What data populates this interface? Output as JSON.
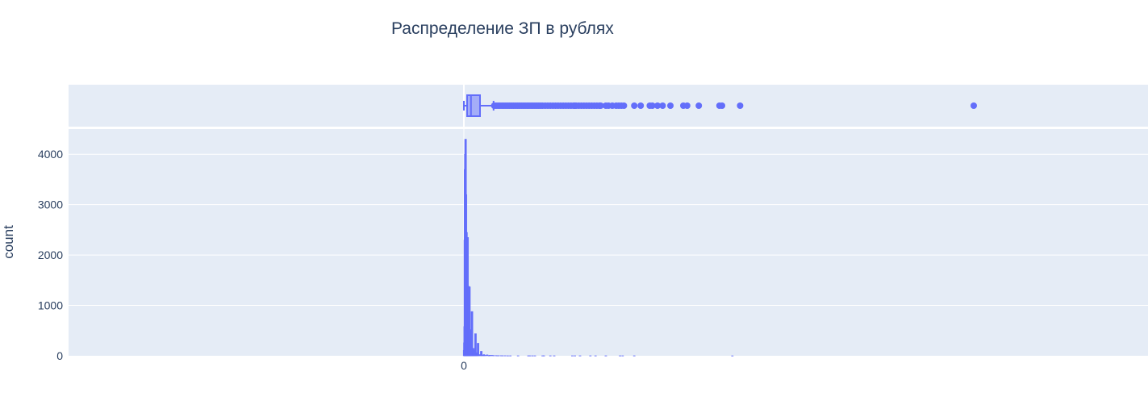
{
  "colors": {
    "plot_bg": "#e5ecf6",
    "grid": "#ffffff",
    "trace": "#636efa",
    "text": "#2a3f5f"
  },
  "chart_data": {
    "type": "histogram",
    "title": "Распределение ЗП в рублях",
    "xlabel": "",
    "ylabel": "count",
    "x_tick_labels": [
      "0"
    ],
    "y_ticks": [
      0,
      1000,
      2000,
      3000,
      4000
    ],
    "ylim": [
      0,
      4500
    ],
    "grid": true,
    "marginal": "box",
    "histogram": {
      "bins": [
        [
          0.02,
          110
        ],
        [
          0.04,
          260
        ],
        [
          0.06,
          580
        ],
        [
          0.075,
          2300
        ],
        [
          0.09,
          3700
        ],
        [
          0.1,
          1500
        ],
        [
          0.11,
          4000
        ],
        [
          0.12,
          2600
        ],
        [
          0.135,
          4300
        ],
        [
          0.15,
          2000
        ],
        [
          0.165,
          3200
        ],
        [
          0.175,
          800
        ],
        [
          0.19,
          920
        ],
        [
          0.205,
          2450
        ],
        [
          0.215,
          620
        ],
        [
          0.225,
          2350
        ],
        [
          0.24,
          420
        ],
        [
          0.255,
          1150
        ],
        [
          0.27,
          300
        ],
        [
          0.29,
          2350
        ],
        [
          0.31,
          80
        ],
        [
          0.33,
          350
        ],
        [
          0.355,
          1380
        ],
        [
          0.375,
          170
        ],
        [
          0.39,
          680
        ],
        [
          0.41,
          360
        ],
        [
          0.43,
          1370
        ],
        [
          0.45,
          100
        ],
        [
          0.475,
          360
        ],
        [
          0.5,
          280
        ],
        [
          0.525,
          90
        ],
        [
          0.55,
          520
        ],
        [
          0.575,
          120
        ],
        [
          0.6,
          50
        ],
        [
          0.63,
          880
        ],
        [
          0.66,
          90
        ],
        [
          0.69,
          50
        ],
        [
          0.72,
          150
        ],
        [
          0.74,
          60
        ],
        [
          0.77,
          110
        ],
        [
          0.8,
          35
        ],
        [
          0.83,
          80
        ],
        [
          0.86,
          20
        ],
        [
          0.9,
          440
        ],
        [
          0.93,
          20
        ],
        [
          0.97,
          60
        ],
        [
          1.0,
          15
        ],
        [
          1.04,
          40
        ],
        [
          1.1,
          250
        ],
        [
          1.15,
          20
        ],
        [
          1.2,
          25
        ],
        [
          1.3,
          15
        ],
        [
          1.35,
          90
        ],
        [
          1.4,
          10
        ],
        [
          1.5,
          10
        ],
        [
          1.55,
          25
        ],
        [
          1.6,
          8
        ],
        [
          1.7,
          10
        ],
        [
          1.8,
          20
        ],
        [
          1.95,
          5
        ],
        [
          2.0,
          12
        ],
        [
          2.1,
          8
        ],
        [
          2.2,
          10
        ],
        [
          2.3,
          6
        ],
        [
          2.5,
          6
        ],
        [
          2.6,
          4
        ],
        [
          2.7,
          5
        ],
        [
          2.9,
          4
        ],
        [
          3.0,
          3
        ],
        [
          3.2,
          3
        ],
        [
          3.4,
          2
        ],
        [
          3.6,
          2
        ],
        [
          4.2,
          2
        ],
        [
          5.0,
          2
        ],
        [
          5.1,
          2
        ],
        [
          5.3,
          2
        ],
        [
          5.5,
          2
        ],
        [
          6.1,
          2
        ],
        [
          6.2,
          2
        ],
        [
          6.7,
          2
        ],
        [
          7.0,
          2
        ],
        [
          8.4,
          2
        ],
        [
          8.6,
          2
        ],
        [
          9.0,
          2
        ],
        [
          9.8,
          2
        ],
        [
          10.2,
          2
        ],
        [
          11.0,
          2
        ],
        [
          12.1,
          2
        ],
        [
          12.3,
          2
        ],
        [
          13.2,
          2
        ],
        [
          20.8,
          1
        ]
      ]
    },
    "box": {
      "min": 0,
      "q1": 0.25,
      "median": 0.55,
      "q3": 1.25,
      "upper_fence": 2.3,
      "outliers": [
        2.35,
        2.5,
        2.65,
        2.8,
        2.95,
        3.1,
        3.25,
        3.4,
        3.55,
        3.7,
        3.85,
        4.0,
        4.15,
        4.3,
        4.45,
        4.6,
        4.75,
        4.9,
        5.05,
        5.2,
        5.35,
        5.5,
        5.65,
        5.8,
        5.95,
        6.1,
        6.3,
        6.5,
        6.7,
        6.9,
        7.1,
        7.3,
        7.5,
        7.7,
        7.9,
        8.1,
        8.3,
        8.5,
        8.6,
        8.7,
        8.9,
        9.1,
        9.3,
        9.5,
        9.7,
        9.9,
        10.1,
        10.3,
        10.5,
        10.6,
        11.0,
        11.2,
        11.5,
        11.8,
        12.0,
        12.2,
        12.4,
        13.2,
        13.7,
        14.4,
        14.6,
        15.0,
        15.4,
        16.0,
        17.0,
        17.3,
        18.2,
        19.8,
        20.0,
        21.4,
        39.5
      ]
    }
  }
}
